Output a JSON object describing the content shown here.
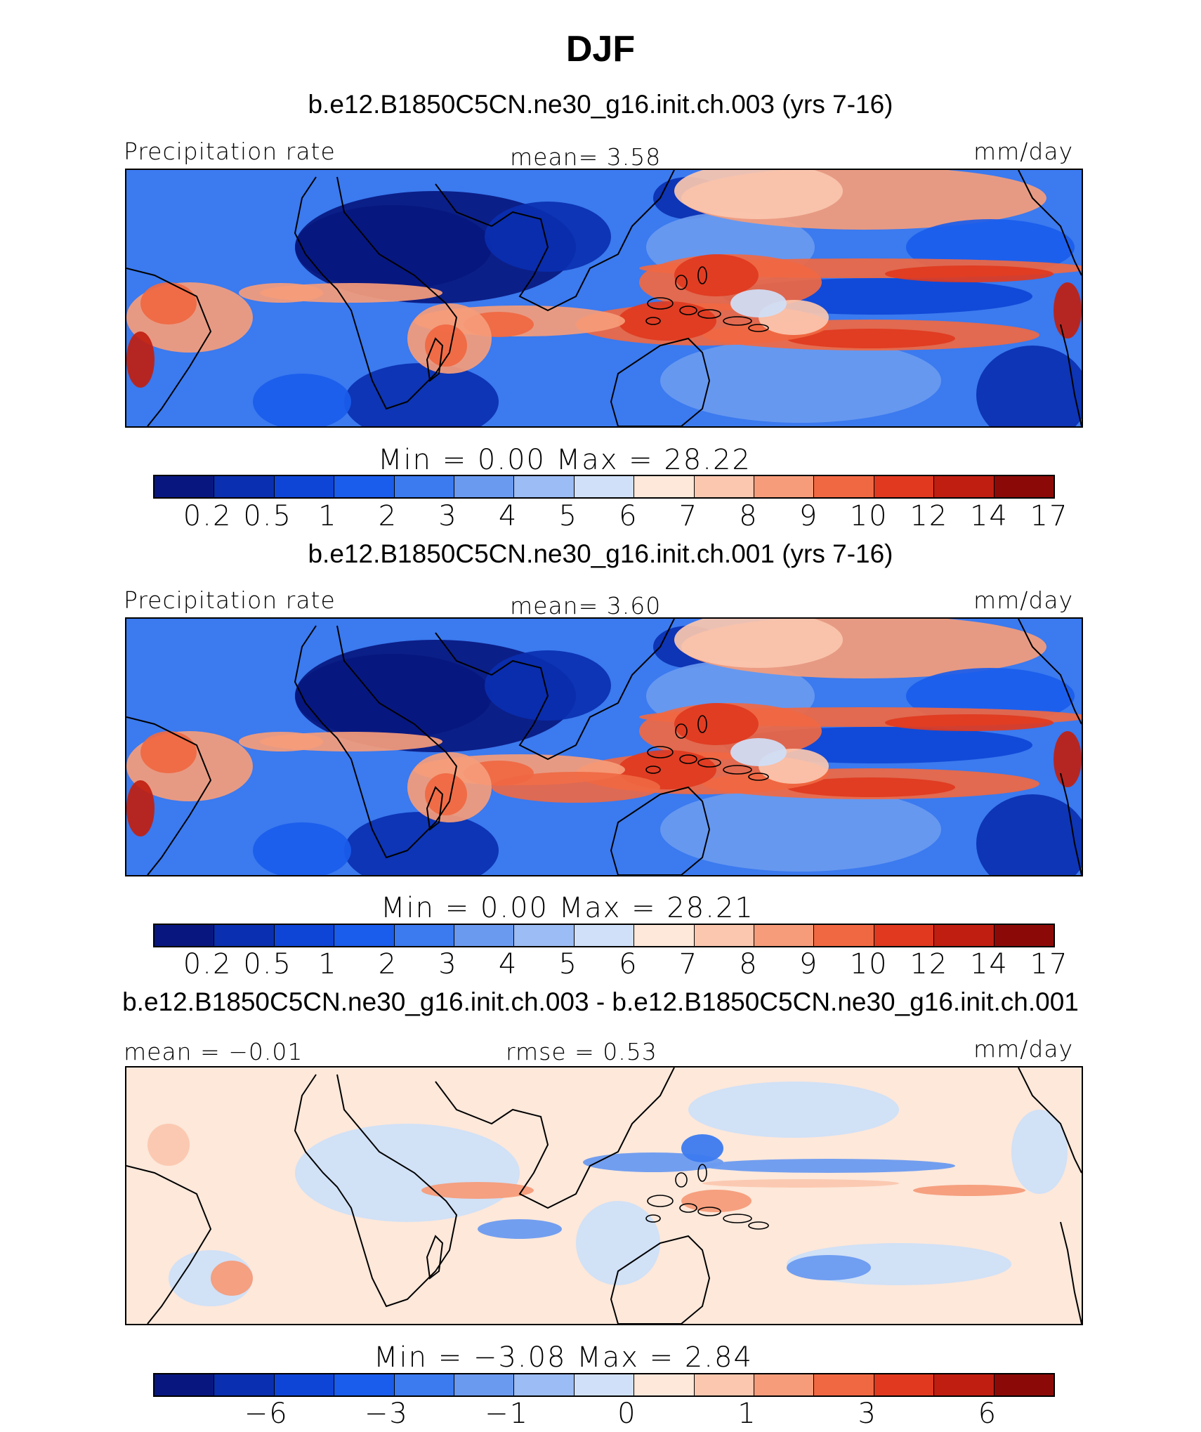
{
  "page": {
    "title": "DJF"
  },
  "colormap": [
    "#08177f",
    "#0a2fb0",
    "#0e45d6",
    "#1a5cec",
    "#3b7aef",
    "#6a9af0",
    "#9bbcf4",
    "#cfe0f8",
    "#fde8da",
    "#fbc7af",
    "#f69c7a",
    "#f06842",
    "#e0391f",
    "#c01e10",
    "#8b0a07"
  ],
  "panels": [
    {
      "title": "b.e12.B1850C5CN.ne30_g16.init.ch.003 (yrs 7-16)",
      "left_label": "Precipitation  rate",
      "center_label": "mean=    3.58",
      "units": "mm/day",
      "minmax": "Min  =     0.00  Max  =    28.22",
      "tick_labels": [
        "0.2",
        "0.5",
        "1",
        "2",
        "3",
        "4",
        "5",
        "6",
        "7",
        "8",
        "9",
        "10",
        "12",
        "14",
        "17"
      ]
    },
    {
      "title": "b.e12.B1850C5CN.ne30_g16.init.ch.001 (yrs 7-16)",
      "left_label": "Precipitation  rate",
      "center_label": "mean=    3.60",
      "units": "mm/day",
      "minmax": "Min  =     0.00  Max  =    28.21",
      "tick_labels": [
        "0.2",
        "0.5",
        "1",
        "2",
        "3",
        "4",
        "5",
        "6",
        "7",
        "8",
        "9",
        "10",
        "12",
        "14",
        "17"
      ]
    },
    {
      "title": "b.e12.B1850C5CN.ne30_g16.init.ch.003 - b.e12.B1850C5CN.ne30_g16.init.ch.001",
      "left_label": "mean  =   −0.01",
      "center_label": "rmse  =    0.53",
      "units": "mm/day",
      "minmax": "Min  =   −3.08  Max  =     2.84",
      "tick_labels": [
        "−6",
        "−3",
        "−1",
        "0",
        "1",
        "3",
        "6"
      ]
    }
  ],
  "chart_data": [
    {
      "type": "heatmap",
      "title": "b.e12.B1850C5CN.ne30_g16.init.ch.003 (yrs 7-16)",
      "variable": "Precipitation rate",
      "units": "mm/day",
      "mean": 3.58,
      "min": 0.0,
      "max": 28.22,
      "contour_levels": [
        0.2,
        0.5,
        1,
        2,
        3,
        4,
        5,
        6,
        7,
        8,
        9,
        10,
        12,
        14,
        17
      ],
      "season": "DJF"
    },
    {
      "type": "heatmap",
      "title": "b.e12.B1850C5CN.ne30_g16.init.ch.001 (yrs 7-16)",
      "variable": "Precipitation rate",
      "units": "mm/day",
      "mean": 3.6,
      "min": 0.0,
      "max": 28.21,
      "contour_levels": [
        0.2,
        0.5,
        1,
        2,
        3,
        4,
        5,
        6,
        7,
        8,
        9,
        10,
        12,
        14,
        17
      ],
      "season": "DJF"
    },
    {
      "type": "heatmap",
      "title": "b.e12.B1850C5CN.ne30_g16.init.ch.003 - b.e12.B1850C5CN.ne30_g16.init.ch.001",
      "units": "mm/day",
      "mean": -0.01,
      "rmse": 0.53,
      "min": -3.08,
      "max": 2.84,
      "contour_levels": [
        -6,
        -3,
        -1,
        0,
        1,
        3,
        6
      ],
      "season": "DJF"
    }
  ]
}
